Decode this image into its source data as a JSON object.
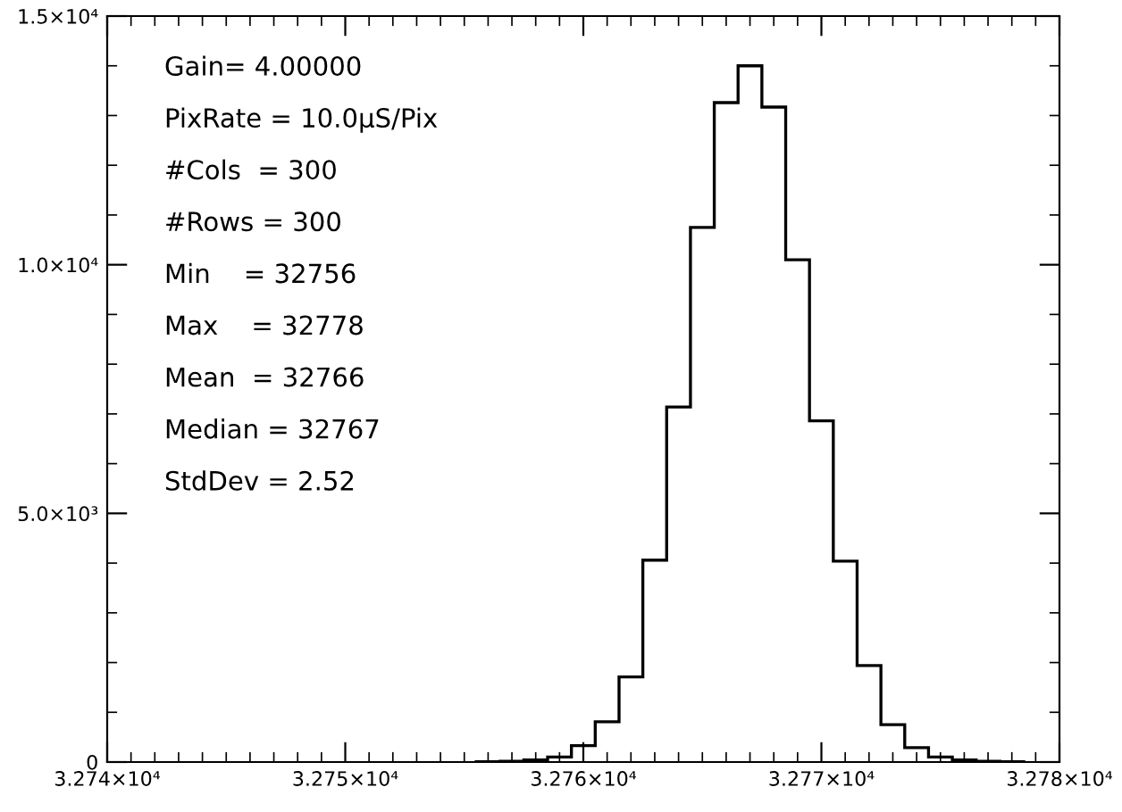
{
  "chart_data": {
    "type": "histogram",
    "color": "#000000",
    "bins": [
      32755.5,
      32756.5,
      32757.5,
      32758.5,
      32759.5,
      32760.5,
      32761.5,
      32762.5,
      32763.5,
      32764.5,
      32765.5,
      32766.5,
      32767.5,
      32768.5,
      32769.5,
      32770.5,
      32771.5,
      32772.5,
      32773.5,
      32774.5,
      32775.5,
      32776.5,
      32777.5,
      32778.5
    ],
    "values": [
      5,
      15,
      40,
      100,
      330,
      810,
      1710,
      4060,
      7140,
      10750,
      13260,
      14000,
      13170,
      10100,
      6860,
      4040,
      1940,
      750,
      290,
      100,
      40,
      15,
      5
    ],
    "xlim": [
      32740,
      32780
    ],
    "xticks": [
      {
        "value": 32740,
        "label": "3.274×10⁴"
      },
      {
        "value": 32750,
        "label": "3.275×10⁴"
      },
      {
        "value": 32760,
        "label": "3.276×10⁴"
      },
      {
        "value": 32770,
        "label": "3.277×10⁴"
      },
      {
        "value": 32780,
        "label": "3.278×10⁴"
      }
    ],
    "ylim": [
      0,
      15000
    ],
    "yticks": [
      0,
      {
        "value": 5000,
        "label": "5.0×10³"
      },
      {
        "value": 10000,
        "label": "1.0×10⁴"
      },
      {
        "value": 15000,
        "label": "1.5×10⁴"
      }
    ],
    "annotations": [
      "Gain= 4.00000",
      "PixRate = 10.0μS/Pix",
      "#Cols  = 300",
      "#Rows = 300",
      "Min    = 32756",
      "Max    = 32778",
      "Mean  = 32766",
      "Median = 32767",
      "StdDev = 2.52"
    ],
    "grid": false,
    "legend": false
  }
}
